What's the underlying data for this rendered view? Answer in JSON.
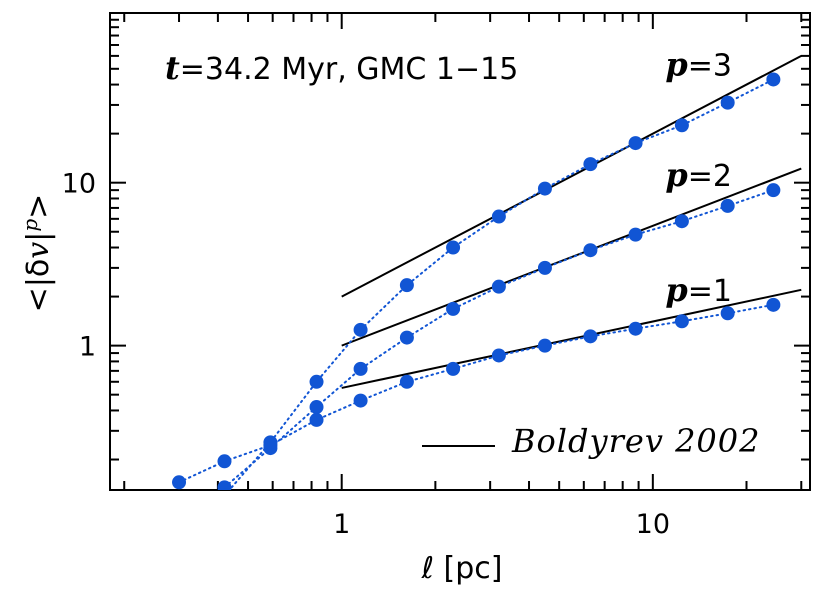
{
  "chart_data": {
    "type": "scatter",
    "title": "t=34.2 Myr,   GMC 1-15",
    "annotation": {
      "t_symbol": "t",
      "text": "=34.2 Myr,   GMC 1−15"
    },
    "xlabel": "ℓ [pc]",
    "ylabel": "<|δv|^p>",
    "ylabel_parts": {
      "left": "<|δ",
      "v": "v",
      "bar": "|",
      "p": "p",
      "right": ">"
    },
    "xscale": "log",
    "yscale": "log",
    "xlim": [
      0.18,
      32
    ],
    "ylim": [
      0.13,
      110
    ],
    "x_ticks": [
      {
        "value": 1,
        "label": "1"
      },
      {
        "value": 10,
        "label": "10"
      }
    ],
    "y_ticks": [
      {
        "value": 1,
        "label": "1"
      },
      {
        "value": 10,
        "label": "10"
      }
    ],
    "marker_color": "#1155d4",
    "series": [
      {
        "name": "p=1",
        "label_p": "p",
        "label_rest": "=1",
        "x": [
          0.3,
          0.42,
          0.59,
          0.83,
          1.15,
          1.62,
          2.28,
          3.2,
          4.5,
          6.3,
          8.8,
          12.4,
          17.4,
          24.4
        ],
        "y": [
          0.145,
          0.195,
          0.245,
          0.35,
          0.46,
          0.6,
          0.72,
          0.87,
          1.0,
          1.14,
          1.27,
          1.41,
          1.58,
          1.78
        ]
      },
      {
        "name": "p=2",
        "label_p": "p",
        "label_rest": "=2",
        "x": [
          0.42,
          0.59,
          0.83,
          1.15,
          1.62,
          2.28,
          3.2,
          4.5,
          6.3,
          8.8,
          12.4,
          17.4,
          24.4
        ],
        "y": [
          0.135,
          0.235,
          0.42,
          0.72,
          1.12,
          1.68,
          2.3,
          3.0,
          3.85,
          4.8,
          5.8,
          7.2,
          9.0
        ]
      },
      {
        "name": "p=3",
        "label_p": "p",
        "label_rest": "=3",
        "x": [
          0.42,
          0.59,
          0.83,
          1.15,
          1.62,
          2.28,
          3.2,
          4.5,
          6.3,
          8.8,
          12.4,
          17.4,
          24.4
        ],
        "y": [
          0.12,
          0.255,
          0.6,
          1.25,
          2.35,
          4.0,
          6.2,
          9.2,
          13.0,
          17.5,
          22.5,
          31.0,
          43.0
        ]
      }
    ],
    "model_lines": [
      {
        "name": "p=1 Boldyrev",
        "x": [
          1,
          30
        ],
        "y": [
          0.55,
          2.2
        ]
      },
      {
        "name": "p=2 Boldyrev",
        "x": [
          1,
          30
        ],
        "y": [
          1.0,
          12.2
        ]
      },
      {
        "name": "p=3 Boldyrev",
        "x": [
          1,
          30
        ],
        "y": [
          2.0,
          60
        ]
      }
    ],
    "legend": {
      "label": "Boldyrev 2002",
      "placement": "bottom-right"
    }
  }
}
